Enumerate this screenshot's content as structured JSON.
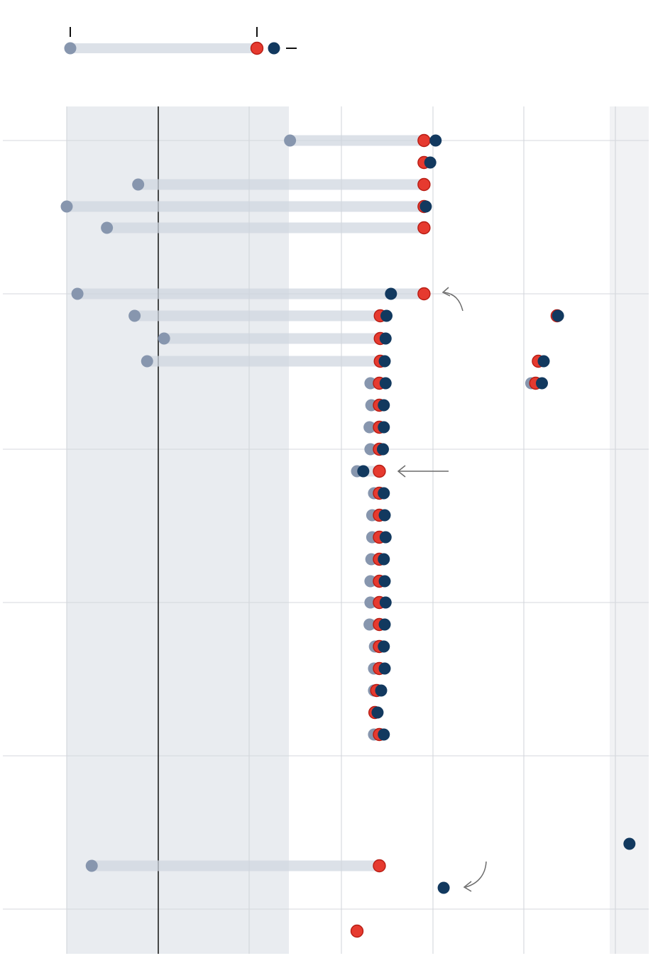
{
  "chart_data": {
    "type": "scatter",
    "title": "",
    "subtitle": "",
    "xlabel": "",
    "ylabel": "",
    "xlim": [
      0,
      3250
    ],
    "grid": true,
    "legend": {
      "placement": "top-left"
    },
    "colors": {
      "start": "#8796ae",
      "middle": "#e63a2f",
      "end": "#12395f",
      "track": "#cfd6df",
      "shade": "#e9ecf0",
      "grid": "#cfd3d8",
      "baseline": "#111111",
      "annotation": "#6b6b6b"
    },
    "series": [
      {
        "points": [
          {
            "row": 0,
            "start": 1250,
            "middle": 2000,
            "end": 2065
          },
          {
            "row": 1,
            "start": null,
            "middle": 2000,
            "end": 2035
          },
          {
            "row": 2,
            "start": 400,
            "middle": 2000,
            "end": null
          },
          {
            "row": 3,
            "start": 0,
            "middle": 2000,
            "end": 2010
          },
          {
            "row": 4,
            "start": 225,
            "middle": 2000,
            "end": null
          },
          {
            "row": 5,
            "start": 60,
            "middle": 2000,
            "end": 1815
          },
          {
            "row": 6,
            "start": 380,
            "middle": 1755,
            "end": 1790
          },
          {
            "row": 7,
            "start": 545,
            "middle": 1755,
            "end": 1785
          },
          {
            "row": 8,
            "start": 450,
            "middle": 1755,
            "end": 1780
          },
          {
            "row": 9,
            "start": 1700,
            "middle": 1750,
            "end": 1785
          },
          {
            "row": 10,
            "start": 1705,
            "middle": 1750,
            "end": 1775
          },
          {
            "row": 11,
            "start": 1695,
            "middle": 1750,
            "end": 1775
          },
          {
            "row": 12,
            "start": 1700,
            "middle": 1750,
            "end": 1770
          },
          {
            "row": 13,
            "start": 1625,
            "middle": 1750,
            "end": 1660
          },
          {
            "row": 14,
            "start": 1720,
            "middle": 1750,
            "end": 1775
          },
          {
            "row": 15,
            "start": 1710,
            "middle": 1750,
            "end": 1780
          },
          {
            "row": 16,
            "start": 1710,
            "middle": 1750,
            "end": 1785
          },
          {
            "row": 17,
            "start": 1705,
            "middle": 1750,
            "end": 1775
          },
          {
            "row": 18,
            "start": 1700,
            "middle": 1750,
            "end": 1780
          },
          {
            "row": 19,
            "start": 1700,
            "middle": 1750,
            "end": 1785
          },
          {
            "row": 20,
            "start": 1695,
            "middle": 1750,
            "end": 1780
          },
          {
            "row": 21,
            "start": 1725,
            "middle": 1750,
            "end": 1775
          },
          {
            "row": 22,
            "start": 1720,
            "middle": 1750,
            "end": 1780
          },
          {
            "row": 23,
            "start": 1720,
            "middle": 1735,
            "end": 1760
          },
          {
            "row": 24,
            "start": null,
            "middle": 1725,
            "end": 1740
          },
          {
            "row": 25,
            "start": 1720,
            "middle": 1750,
            "end": 1775
          },
          {
            "row": 27,
            "start": null,
            "middle": null,
            "end": 3150
          },
          {
            "row": 28,
            "start": 140,
            "middle": 1750,
            "end": null
          },
          {
            "row": 29,
            "start": null,
            "middle": null,
            "end": 2110
          },
          {
            "row": 30,
            "start": null,
            "middle": 1625,
            "end": null
          },
          {
            "row": 6,
            "start": null,
            "middle": 2745,
            "end": 2750
          },
          {
            "row": 8,
            "start": null,
            "middle": 2640,
            "end": 2670
          },
          {
            "row": 9,
            "start": 2600,
            "middle": 2625,
            "end": 2660
          },
          {
            "row": 5,
            "start": null,
            "middle": null,
            "end": null
          }
        ]
      }
    ],
    "legend_items": [
      {
        "label": "",
        "type": "range-start"
      },
      {
        "label": "",
        "type": "range-middle"
      },
      {
        "label": "",
        "type": "range-end"
      }
    ]
  }
}
